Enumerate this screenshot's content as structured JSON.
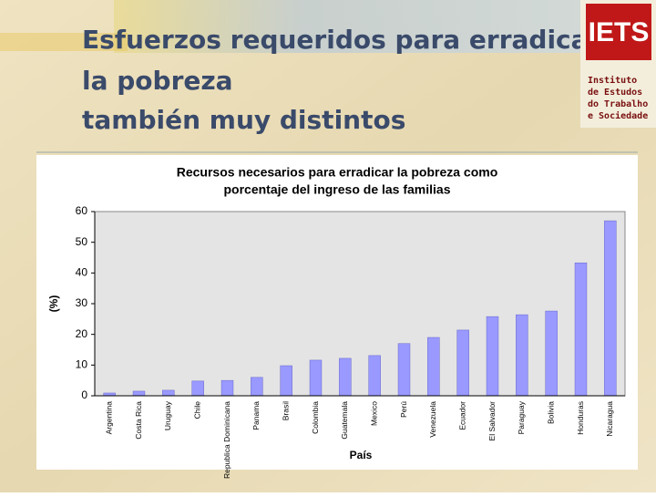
{
  "slide_title": [
    "Esfuerzos requeridos para erradicar",
    "la pobreza",
    "también muy distintos"
  ],
  "logo": {
    "mark": "IETS",
    "lines": [
      "Instituto",
      "de Estudos",
      "do Trabalho",
      "e Sociedade"
    ]
  },
  "chart_data": {
    "type": "bar",
    "title": [
      "Recursos necesarios para erradicar la pobreza como",
      "porcentaje del ingreso de las familias"
    ],
    "y_label": "(%)",
    "x_label": "País",
    "categories": [
      "Argentina",
      "Costa Rica",
      "Uruguay",
      "Chile",
      "Republica Dominicana",
      "Panama",
      "Brasil",
      "Colombia",
      "Guatemala",
      "Mexico",
      "Perú",
      "Venezuela",
      "Ecuador",
      "El Salvador",
      "Paraguay",
      "Bolivia",
      "Honduras",
      "Nicaragua"
    ],
    "values": [
      0.9,
      1.5,
      1.8,
      4.8,
      5,
      6,
      9.8,
      11.6,
      12.2,
      13.1,
      17,
      19,
      21.4,
      25.8,
      26.4,
      27.6,
      43.3,
      57
    ],
    "color": "#9999ff",
    "ylim": [
      0,
      60
    ],
    "yticks": [
      0,
      10,
      20,
      30,
      40,
      50,
      60
    ],
    "grid": false
  }
}
